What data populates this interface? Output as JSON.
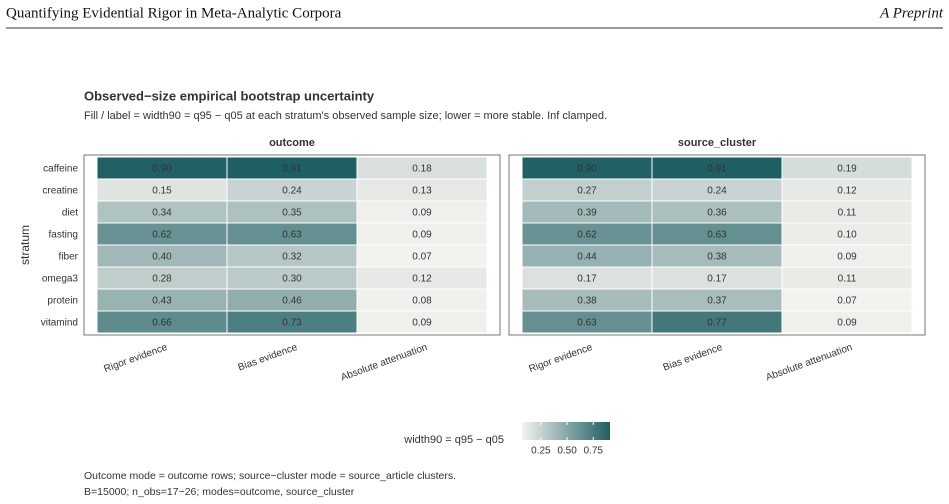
{
  "header": {
    "title": "Quantifying Evidential Rigor in Meta-Analytic Corpora",
    "tag": "A Preprint"
  },
  "chart_data": {
    "type": "heatmap",
    "title": "Observed−size empirical bootstrap uncertainty",
    "subtitle": "Fill / label = width90 = q95 − q05 at each stratum's observed sample size; lower = more stable. Inf clamped.",
    "y_label": "stratum",
    "rows": [
      "caffeine",
      "creatine",
      "diet",
      "fasting",
      "fiber",
      "omega3",
      "protein",
      "vitamind"
    ],
    "columns": [
      "Rigor evidence",
      "Bias evidence",
      "Absolute attenuation"
    ],
    "panels": [
      {
        "name": "outcome",
        "values": [
          [
            0.9,
            0.91,
            0.18
          ],
          [
            0.15,
            0.24,
            0.13
          ],
          [
            0.34,
            0.35,
            0.09
          ],
          [
            0.62,
            0.63,
            0.09
          ],
          [
            0.4,
            0.32,
            0.07
          ],
          [
            0.28,
            0.3,
            0.12
          ],
          [
            0.43,
            0.46,
            0.08
          ],
          [
            0.66,
            0.73,
            0.09
          ]
        ],
        "value_labels": [
          [
            "0.90",
            "0.91",
            "0.18"
          ],
          [
            "0.15",
            "0.24",
            "0.13"
          ],
          [
            "0.34",
            "0.35",
            "0.09"
          ],
          [
            "0.62",
            "0.63",
            "0.09"
          ],
          [
            "0.40",
            "0.32",
            "0.07"
          ],
          [
            "0.28",
            "0.30",
            "0.12"
          ],
          [
            "0.43",
            "0.46",
            "0.08"
          ],
          [
            "0.66",
            "0.73",
            "0.09"
          ]
        ]
      },
      {
        "name": "source_cluster",
        "values": [
          [
            0.9,
            0.91,
            0.19
          ],
          [
            0.27,
            0.24,
            0.12
          ],
          [
            0.39,
            0.36,
            0.11
          ],
          [
            0.62,
            0.63,
            0.1
          ],
          [
            0.44,
            0.38,
            0.09
          ],
          [
            0.17,
            0.17,
            0.11
          ],
          [
            0.38,
            0.37,
            0.07
          ],
          [
            0.63,
            0.77,
            0.09
          ]
        ],
        "value_labels": [
          [
            "0.90",
            "0.91",
            "0.19"
          ],
          [
            "0.27",
            "0.24",
            "0.12"
          ],
          [
            "0.39",
            "0.36",
            "0.11"
          ],
          [
            "0.62",
            "0.63",
            "0.10"
          ],
          [
            "0.44",
            "0.38",
            "0.09"
          ],
          [
            "0.17",
            "0.17",
            "0.11"
          ],
          [
            "0.38",
            "0.37",
            "0.07"
          ],
          [
            "0.63",
            "0.77",
            "0.09"
          ]
        ]
      }
    ],
    "colorbar": {
      "title": "width90 = q95 − q05",
      "lim": [
        0.07,
        0.91
      ],
      "colors": [
        "#f4f2ee",
        "#1e5f63"
      ],
      "ticks": [
        0.25,
        {
          "value": 0.5,
          "label": "0.50"
        },
        0.75
      ]
    },
    "caption": [
      "Outcome mode = outcome rows; source−cluster mode = source_article clusters.",
      "B=15000; n_obs=17−26; modes=outcome, source_cluster"
    ]
  }
}
